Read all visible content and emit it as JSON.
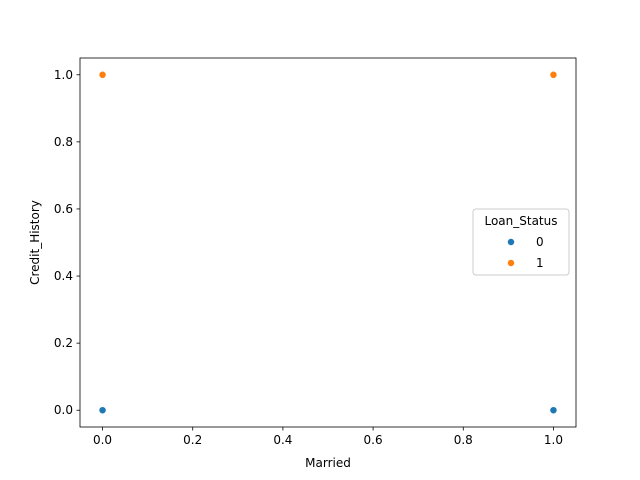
{
  "chart_data": {
    "type": "scatter",
    "title": "",
    "xlabel": "Married",
    "ylabel": "Credit_History",
    "xlim": [
      -0.05,
      1.05
    ],
    "ylim": [
      -0.05,
      1.05
    ],
    "xticks": [
      "0.0",
      "0.2",
      "0.4",
      "0.6",
      "0.8",
      "1.0"
    ],
    "yticks": [
      "0.0",
      "0.2",
      "0.4",
      "0.6",
      "0.8",
      "1.0"
    ],
    "grid": false,
    "legend": {
      "title": "Loan_Status",
      "placement": "center-right"
    },
    "series": [
      {
        "name": "0",
        "color": "#1f77b4",
        "points": [
          [
            0,
            0
          ],
          [
            1,
            0
          ]
        ]
      },
      {
        "name": "1",
        "color": "#ff7f0e",
        "points": [
          [
            0,
            1
          ],
          [
            1,
            1
          ]
        ]
      }
    ]
  }
}
